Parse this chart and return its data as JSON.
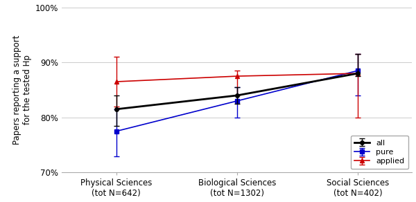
{
  "categories": [
    "Physical Sciences\n(tot N=642)",
    "Biological Sciences\n(tot N=1302)",
    "Social Sciences\n(tot N=402)"
  ],
  "x_positions": [
    0,
    1,
    2
  ],
  "series_order": [
    "all",
    "pure",
    "applied"
  ],
  "series": {
    "all": {
      "values": [
        81.5,
        84.0,
        88.0
      ],
      "yerr_low": [
        3.0,
        1.5,
        0.5
      ],
      "yerr_high": [
        2.5,
        1.5,
        3.5
      ],
      "color": "#000000",
      "marker": "o",
      "markersize": 4,
      "linewidth": 2.0,
      "label": "all"
    },
    "pure": {
      "values": [
        77.5,
        83.0,
        88.5
      ],
      "yerr_low": [
        4.5,
        3.0,
        4.5
      ],
      "yerr_high": [
        4.0,
        2.5,
        3.0
      ],
      "color": "#0000cc",
      "marker": "s",
      "markersize": 4,
      "linewidth": 1.2,
      "label": "pure"
    },
    "applied": {
      "values": [
        86.5,
        87.5,
        88.0
      ],
      "yerr_low": [
        4.5,
        3.5,
        8.0
      ],
      "yerr_high": [
        4.5,
        1.0,
        3.5
      ],
      "color": "#cc0000",
      "marker": "^",
      "markersize": 4,
      "linewidth": 1.2,
      "label": "applied"
    }
  },
  "ylabel": "Papers reporting a support\nfor the tested Hp",
  "ylim": [
    70,
    100
  ],
  "yticks": [
    70,
    80,
    90,
    100
  ],
  "ytick_labels": [
    "70%",
    "80%",
    "90%",
    "100%"
  ],
  "background_color": "#ffffff",
  "legend_loc": "lower right",
  "legend_fontsize": 8,
  "ylabel_fontsize": 8.5,
  "tick_fontsize": 8.5,
  "grid_color": "#cccccc",
  "grid_linewidth": 0.7
}
